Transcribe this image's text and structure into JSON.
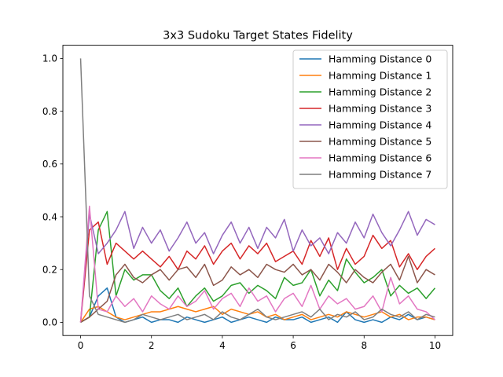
{
  "chart_data": {
    "type": "line",
    "title": "3x3 Sudoku Target States Fidelity",
    "xlabel": "",
    "ylabel": "",
    "xlim": [
      -0.5,
      10.5
    ],
    "ylim": [
      -0.05,
      1.05
    ],
    "xticks": [
      0,
      2,
      4,
      6,
      8,
      10
    ],
    "xtick_labels": [
      "0",
      "2",
      "4",
      "6",
      "8",
      "10"
    ],
    "yticks": [
      0.0,
      0.2,
      0.4,
      0.6,
      0.8,
      1.0
    ],
    "ytick_labels": [
      "0.0",
      "0.2",
      "0.4",
      "0.6",
      "0.8",
      "1.0"
    ],
    "grid": false,
    "legend_position": "top-right",
    "x": [
      0,
      0.25,
      0.5,
      0.75,
      1,
      1.25,
      1.5,
      1.75,
      2,
      2.25,
      2.5,
      2.75,
      3,
      3.25,
      3.5,
      3.75,
      4,
      4.25,
      4.5,
      4.75,
      5,
      5.25,
      5.5,
      5.75,
      6,
      6.25,
      6.5,
      6.75,
      7,
      7.25,
      7.5,
      7.75,
      8,
      8.25,
      8.5,
      8.75,
      9,
      9.25,
      9.5,
      9.75,
      10
    ],
    "series": [
      {
        "name": "Hamming Distance 0",
        "color": "#1f77b4",
        "values": [
          0.0,
          0.02,
          0.1,
          0.13,
          0.02,
          0.0,
          0.01,
          0.02,
          0.0,
          0.01,
          0.01,
          0.0,
          0.02,
          0.01,
          0.0,
          0.01,
          0.02,
          0.0,
          0.01,
          0.02,
          0.01,
          0.0,
          0.02,
          0.01,
          0.01,
          0.02,
          0.0,
          0.01,
          0.02,
          0.0,
          0.04,
          0.01,
          0.0,
          0.01,
          0.0,
          0.02,
          0.01,
          0.03,
          0.01,
          0.02,
          0.01
        ]
      },
      {
        "name": "Hamming Distance 1",
        "color": "#ff7f0e",
        "values": [
          0.0,
          0.05,
          0.06,
          0.04,
          0.02,
          0.01,
          0.02,
          0.03,
          0.04,
          0.04,
          0.05,
          0.06,
          0.05,
          0.04,
          0.05,
          0.06,
          0.03,
          0.05,
          0.04,
          0.03,
          0.04,
          0.02,
          0.03,
          0.01,
          0.02,
          0.03,
          0.01,
          0.02,
          0.03,
          0.02,
          0.04,
          0.03,
          0.02,
          0.03,
          0.04,
          0.02,
          0.03,
          0.01,
          0.02,
          0.02,
          0.01
        ]
      },
      {
        "name": "Hamming Distance 2",
        "color": "#2ca02c",
        "values": [
          0.0,
          0.02,
          0.35,
          0.42,
          0.1,
          0.2,
          0.16,
          0.18,
          0.18,
          0.12,
          0.09,
          0.13,
          0.06,
          0.1,
          0.13,
          0.08,
          0.1,
          0.14,
          0.15,
          0.11,
          0.14,
          0.12,
          0.09,
          0.17,
          0.14,
          0.15,
          0.2,
          0.1,
          0.16,
          0.12,
          0.24,
          0.19,
          0.15,
          0.17,
          0.2,
          0.1,
          0.14,
          0.11,
          0.13,
          0.09,
          0.13
        ]
      },
      {
        "name": "Hamming Distance 3",
        "color": "#d62728",
        "values": [
          0.0,
          0.35,
          0.38,
          0.22,
          0.3,
          0.27,
          0.24,
          0.27,
          0.24,
          0.21,
          0.25,
          0.2,
          0.27,
          0.24,
          0.29,
          0.22,
          0.27,
          0.3,
          0.24,
          0.29,
          0.26,
          0.3,
          0.23,
          0.25,
          0.27,
          0.22,
          0.31,
          0.25,
          0.32,
          0.2,
          0.28,
          0.22,
          0.25,
          0.33,
          0.28,
          0.31,
          0.21,
          0.26,
          0.2,
          0.25,
          0.28
        ]
      },
      {
        "name": "Hamming Distance 4",
        "color": "#9467bd",
        "values": [
          0.0,
          0.41,
          0.26,
          0.3,
          0.35,
          0.42,
          0.28,
          0.36,
          0.3,
          0.35,
          0.27,
          0.32,
          0.38,
          0.3,
          0.34,
          0.26,
          0.33,
          0.38,
          0.3,
          0.36,
          0.28,
          0.36,
          0.32,
          0.39,
          0.27,
          0.35,
          0.29,
          0.32,
          0.26,
          0.34,
          0.3,
          0.38,
          0.32,
          0.41,
          0.34,
          0.29,
          0.35,
          0.42,
          0.33,
          0.39,
          0.37
        ]
      },
      {
        "name": "Hamming Distance 5",
        "color": "#8c564b",
        "values": [
          0.0,
          0.02,
          0.05,
          0.08,
          0.18,
          0.22,
          0.17,
          0.15,
          0.18,
          0.2,
          0.16,
          0.2,
          0.21,
          0.17,
          0.22,
          0.14,
          0.16,
          0.21,
          0.18,
          0.2,
          0.17,
          0.22,
          0.2,
          0.19,
          0.22,
          0.18,
          0.2,
          0.16,
          0.22,
          0.19,
          0.15,
          0.2,
          0.17,
          0.15,
          0.19,
          0.22,
          0.16,
          0.25,
          0.15,
          0.2,
          0.18
        ]
      },
      {
        "name": "Hamming Distance 6",
        "color": "#e377c2",
        "values": [
          0.0,
          0.44,
          0.05,
          0.04,
          0.1,
          0.06,
          0.09,
          0.04,
          0.1,
          0.07,
          0.05,
          0.1,
          0.06,
          0.08,
          0.12,
          0.05,
          0.09,
          0.11,
          0.06,
          0.13,
          0.08,
          0.1,
          0.04,
          0.09,
          0.11,
          0.06,
          0.14,
          0.05,
          0.1,
          0.07,
          0.09,
          0.05,
          0.06,
          0.1,
          0.04,
          0.17,
          0.07,
          0.1,
          0.05,
          0.04,
          0.01
        ]
      },
      {
        "name": "Hamming Distance 7",
        "color": "#7f7f7f",
        "values": [
          1.0,
          0.1,
          0.03,
          0.02,
          0.01,
          0.0,
          0.01,
          0.03,
          0.02,
          0.01,
          0.02,
          0.03,
          0.01,
          0.02,
          0.03,
          0.01,
          0.04,
          0.02,
          0.01,
          0.03,
          0.05,
          0.02,
          0.01,
          0.02,
          0.03,
          0.04,
          0.02,
          0.05,
          0.01,
          0.03,
          0.02,
          0.04,
          0.01,
          0.02,
          0.05,
          0.03,
          0.02,
          0.04,
          0.01,
          0.03,
          0.02
        ]
      }
    ]
  }
}
